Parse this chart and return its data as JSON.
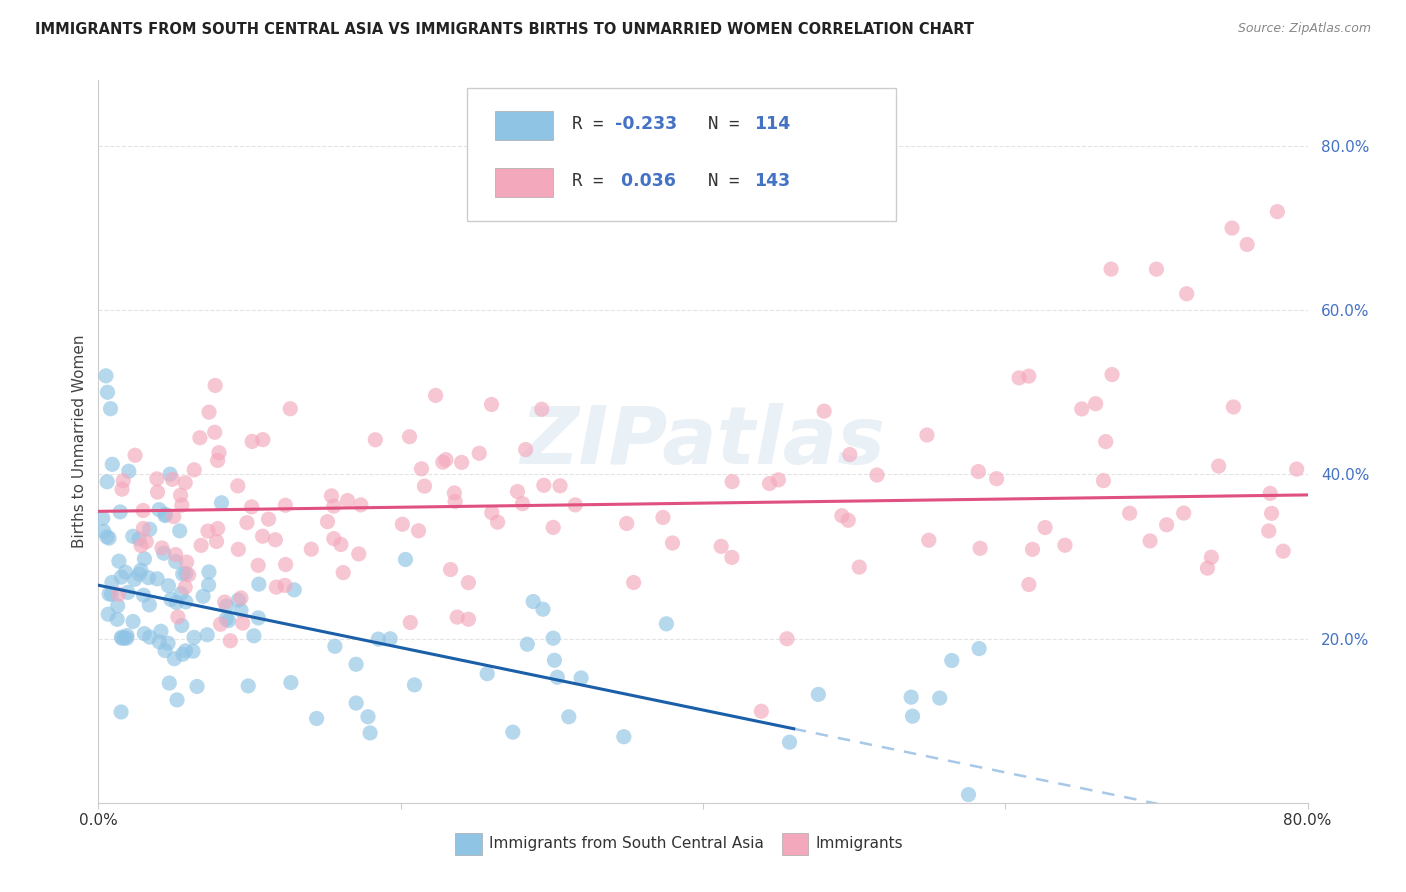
{
  "title": "IMMIGRANTS FROM SOUTH CENTRAL ASIA VS IMMIGRANTS BIRTHS TO UNMARRIED WOMEN CORRELATION CHART",
  "source": "Source: ZipAtlas.com",
  "ylabel": "Births to Unmarried Women",
  "yticks": [
    "20.0%",
    "40.0%",
    "60.0%",
    "80.0%"
  ],
  "ytick_vals": [
    0.2,
    0.4,
    0.6,
    0.8
  ],
  "xlim": [
    0.0,
    0.8
  ],
  "ylim": [
    0.0,
    0.88
  ],
  "watermark": "ZIPatlas",
  "blue_color": "#90c4e4",
  "pink_color": "#f4a8bc",
  "blue_line_color": "#1a5fa8",
  "pink_line_color": "#e05080",
  "dash_line_color": "#a8c8e8",
  "background": "#ffffff",
  "grid_color": "#dddddd",
  "tick_color": "#4472C4",
  "blue_intercept": 0.265,
  "blue_slope": -0.38,
  "pink_intercept": 0.355,
  "pink_slope": 0.025
}
